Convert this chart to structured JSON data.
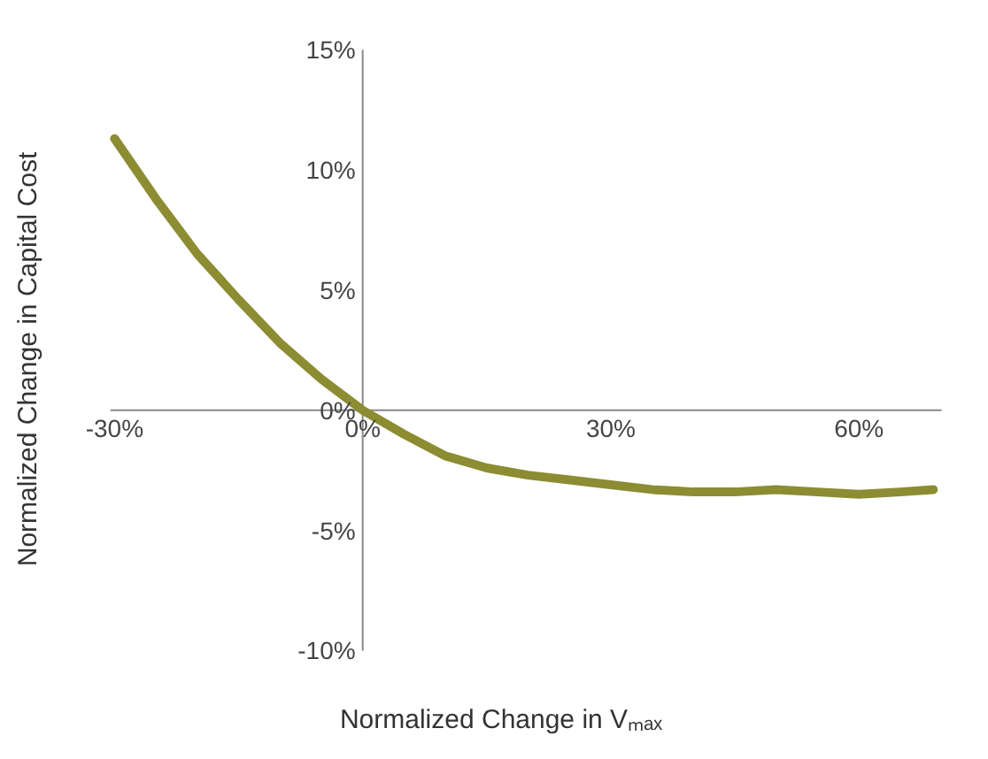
{
  "chart_data": {
    "type": "line",
    "xlabel": "Normalized Change in Vₘₐₓ",
    "ylabel": "Normalized Change in Capital Cost",
    "x": [
      -30,
      -25,
      -20,
      -15,
      -10,
      -5,
      0,
      5,
      10,
      15,
      20,
      25,
      30,
      35,
      40,
      45,
      50,
      55,
      60,
      65,
      69
    ],
    "series": [
      {
        "color": "#8c8c32",
        "values": [
          11.3,
          8.8,
          6.5,
          4.6,
          2.8,
          1.3,
          0,
          -1.0,
          -1.9,
          -2.4,
          -2.7,
          -2.9,
          -3.1,
          -3.3,
          -3.4,
          -3.4,
          -3.3,
          -3.4,
          -3.5,
          -3.4,
          -3.3
        ]
      }
    ],
    "xlim": [
      -30.5,
      70
    ],
    "ylim": [
      -10,
      15
    ],
    "xticks": [
      {
        "value": -30,
        "label": "-30%"
      },
      {
        "value": 0,
        "label": "0%"
      },
      {
        "value": 30,
        "label": "30%"
      },
      {
        "value": 60,
        "label": "60%"
      }
    ],
    "yticks": [
      {
        "value": -10,
        "label": "-10%"
      },
      {
        "value": -5,
        "label": "-5%"
      },
      {
        "value": 0,
        "label": "0%"
      },
      {
        "value": 5,
        "label": "5%"
      },
      {
        "value": 10,
        "label": "10%"
      },
      {
        "value": 15,
        "label": "15%"
      }
    ],
    "grid": false,
    "legend": false,
    "marker": "none",
    "line_style": "solid"
  }
}
